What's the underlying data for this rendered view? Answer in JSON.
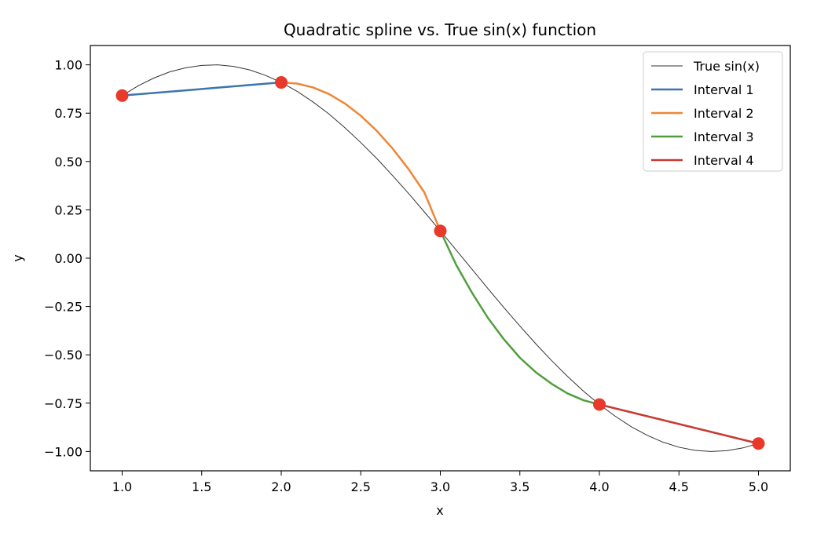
{
  "chart_data": {
    "type": "line",
    "title": "Quadratic spline vs. True sin(x) function",
    "xlabel": "x",
    "ylabel": "y",
    "xlim": [
      0.8,
      5.2
    ],
    "ylim": [
      -1.1,
      1.1
    ],
    "x_ticks": [
      1.0,
      1.5,
      2.0,
      2.5,
      3.0,
      3.5,
      4.0,
      4.5,
      5.0
    ],
    "x_tick_labels": [
      "1.0",
      "1.5",
      "2.0",
      "2.5",
      "3.0",
      "3.5",
      "4.0",
      "4.5",
      "5.0"
    ],
    "y_ticks": [
      1.0,
      0.75,
      0.5,
      0.25,
      0.0,
      -0.25,
      -0.5,
      -0.75,
      -1.0
    ],
    "y_tick_labels": [
      "1.00",
      "0.75",
      "0.50",
      "0.25",
      "0.00",
      "−0.25",
      "−0.50",
      "−0.75",
      "−1.00"
    ],
    "grid": false,
    "legend_position": "top-right",
    "true_function": {
      "name": "True sin(x)",
      "color": "#333333",
      "x": [
        1.0,
        1.1,
        1.2,
        1.3,
        1.4,
        1.5,
        1.6,
        1.7,
        1.8,
        1.9,
        2.0,
        2.1,
        2.2,
        2.3,
        2.4,
        2.5,
        2.6,
        2.7,
        2.8,
        2.9,
        3.0,
        3.1,
        3.2,
        3.3,
        3.4,
        3.5,
        3.6,
        3.7,
        3.8,
        3.9,
        4.0,
        4.1,
        4.2,
        4.3,
        4.4,
        4.5,
        4.6,
        4.7,
        4.8,
        4.9,
        5.0
      ],
      "y": [
        0.841,
        0.891,
        0.932,
        0.964,
        0.985,
        0.997,
        1.0,
        0.992,
        0.974,
        0.946,
        0.909,
        0.863,
        0.808,
        0.746,
        0.675,
        0.598,
        0.516,
        0.427,
        0.335,
        0.239,
        0.141,
        0.042,
        -0.058,
        -0.158,
        -0.256,
        -0.351,
        -0.443,
        -0.53,
        -0.612,
        -0.688,
        -0.757,
        -0.818,
        -0.872,
        -0.916,
        -0.952,
        -0.978,
        -0.994,
        -1.0,
        -0.996,
        -0.982,
        -0.959
      ]
    },
    "series": [
      {
        "name": "Interval 1",
        "color": "#3b75af",
        "x": [
          1.0,
          2.0
        ],
        "y": [
          0.841,
          0.909
        ]
      },
      {
        "name": "Interval 2",
        "color": "#ef8636",
        "x": [
          2.0,
          2.1,
          2.2,
          2.3,
          2.4,
          2.5,
          2.6,
          2.7,
          2.8,
          2.9,
          3.0
        ],
        "y": [
          0.909,
          0.903,
          0.883,
          0.849,
          0.8,
          0.737,
          0.659,
          0.567,
          0.461,
          0.34,
          0.141
        ]
      },
      {
        "name": "Interval 3",
        "color": "#519e3e",
        "x": [
          3.0,
          3.1,
          3.2,
          3.3,
          3.4,
          3.5,
          3.6,
          3.7,
          3.8,
          3.9,
          4.0
        ],
        "y": [
          0.141,
          -0.035,
          -0.18,
          -0.31,
          -0.42,
          -0.515,
          -0.59,
          -0.65,
          -0.7,
          -0.735,
          -0.757
        ]
      },
      {
        "name": "Interval 4",
        "color": "#c53a32",
        "x": [
          4.0,
          5.0
        ],
        "y": [
          -0.757,
          -0.959
        ]
      }
    ],
    "knots": {
      "color": "#e8392b",
      "x": [
        1.0,
        2.0,
        3.0,
        4.0,
        5.0
      ],
      "y": [
        0.841,
        0.909,
        0.141,
        -0.757,
        -0.959
      ]
    }
  }
}
